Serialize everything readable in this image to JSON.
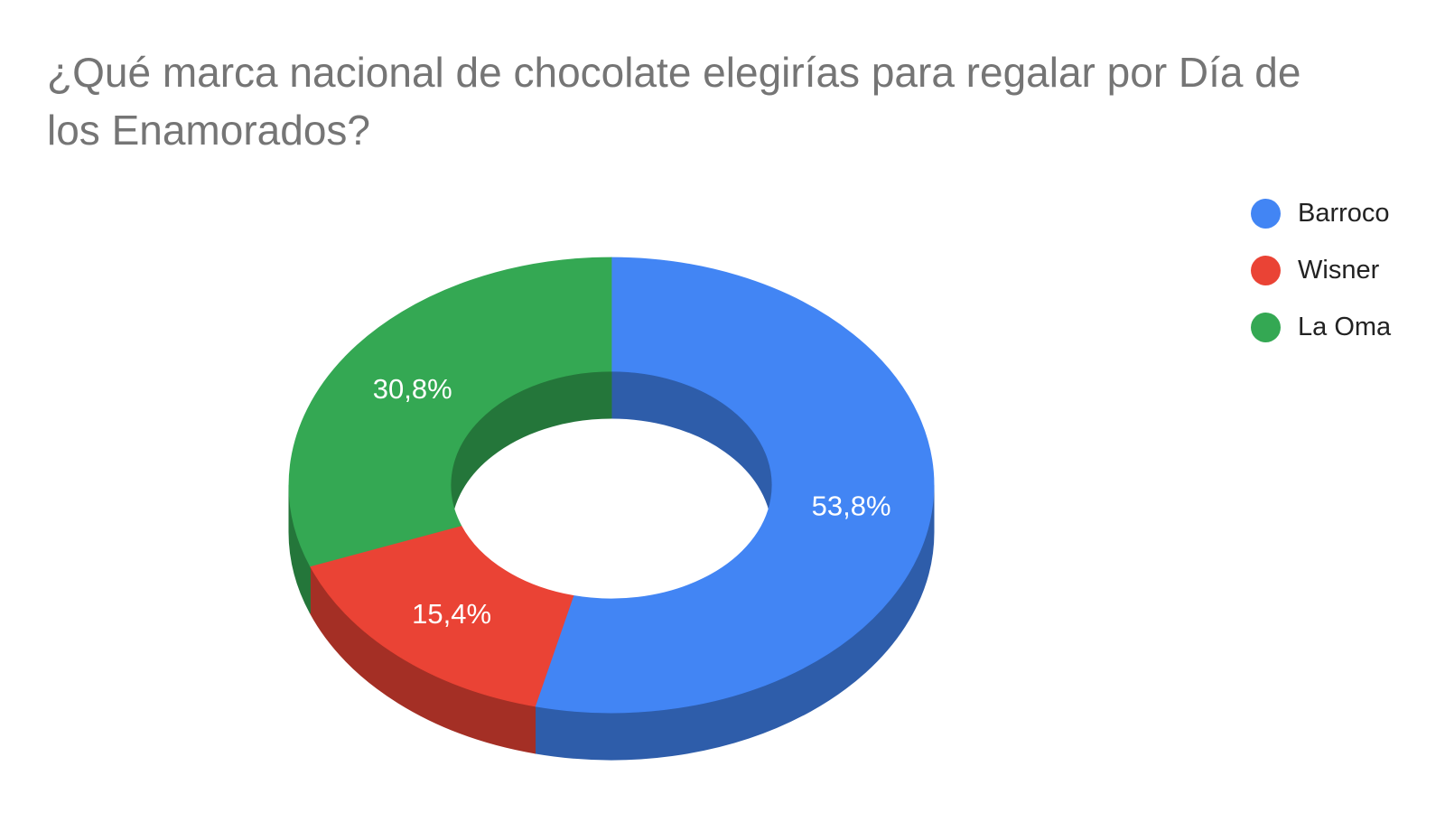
{
  "chart_data": {
    "type": "pie",
    "variant": "3d-donut",
    "title": "¿Qué marca nacional de chocolate elegirías para regalar por Día de los Enamorados?",
    "slices": [
      {
        "name": "Barroco",
        "value": 53.8,
        "label": "53,8%",
        "color": "#4285F4",
        "side_color": "#2E5DAA"
      },
      {
        "name": "Wisner",
        "value": 15.4,
        "label": "15,4%",
        "color": "#EA4335",
        "side_color": "#A42F25"
      },
      {
        "name": "La Oma",
        "value": 30.8,
        "label": "30,8%",
        "color": "#34A853",
        "side_color": "#24763A"
      }
    ],
    "legend_position": "top-right"
  }
}
